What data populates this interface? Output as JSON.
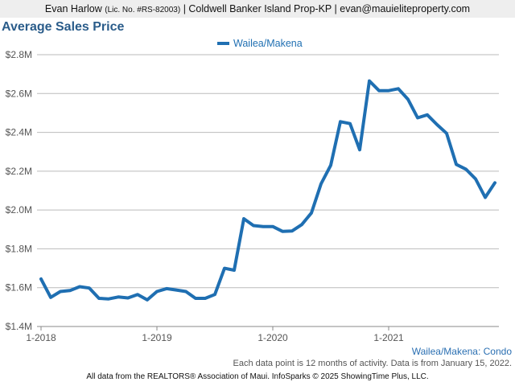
{
  "header": {
    "agent_name": "Evan Harlow",
    "license": "(Lic. No. #RS-82003)",
    "rest": "| Coldwell Banker Island Prop-KP | evan@mauieliteproperty.com"
  },
  "title": "Average Sales Price",
  "footnotes": {
    "area_label": "Wailea/Makena: Condo",
    "activity_note": "Each data point is 12 months of activity. Data is from January 15, 2022.",
    "source": "All data from the REALTORS® Association of Maui. InfoSparks © 2025 ShowingTime Plus, LLC."
  },
  "chart_data": {
    "type": "line",
    "legend_position": "top-center",
    "grid": "horizontal",
    "colors": {
      "series": "#1f6fb2",
      "grid": "#bbbbbb",
      "axis": "#888888"
    },
    "ylim": [
      1400000,
      2800000
    ],
    "y_ticks": [
      {
        "value": 1400000,
        "label": "$1.4M"
      },
      {
        "value": 1600000,
        "label": "$1.6M"
      },
      {
        "value": 1800000,
        "label": "$1.8M"
      },
      {
        "value": 2000000,
        "label": "$2.0M"
      },
      {
        "value": 2200000,
        "label": "$2.2M"
      },
      {
        "value": 2400000,
        "label": "$2.4M"
      },
      {
        "value": 2600000,
        "label": "$2.6M"
      },
      {
        "value": 2800000,
        "label": "$2.8M"
      }
    ],
    "x_ticks": [
      {
        "index": 0,
        "label": "1-2018"
      },
      {
        "index": 12,
        "label": "1-2019"
      },
      {
        "index": 24,
        "label": "1-2020"
      },
      {
        "index": 36,
        "label": "1-2021"
      }
    ],
    "x_count": 48,
    "series": [
      {
        "name": "Wailea/Makena",
        "values": [
          1645000,
          1550000,
          1580000,
          1585000,
          1605000,
          1598000,
          1545000,
          1542000,
          1552000,
          1547000,
          1565000,
          1537000,
          1580000,
          1595000,
          1588000,
          1580000,
          1545000,
          1545000,
          1565000,
          1700000,
          1690000,
          1955000,
          1920000,
          1915000,
          1915000,
          1890000,
          1892000,
          1925000,
          1985000,
          2135000,
          2230000,
          2455000,
          2445000,
          2310000,
          2665000,
          2615000,
          2615000,
          2625000,
          2570000,
          2475000,
          2490000,
          2440000,
          2395000,
          2235000,
          2210000,
          2160000,
          2065000,
          2140000
        ]
      }
    ]
  }
}
